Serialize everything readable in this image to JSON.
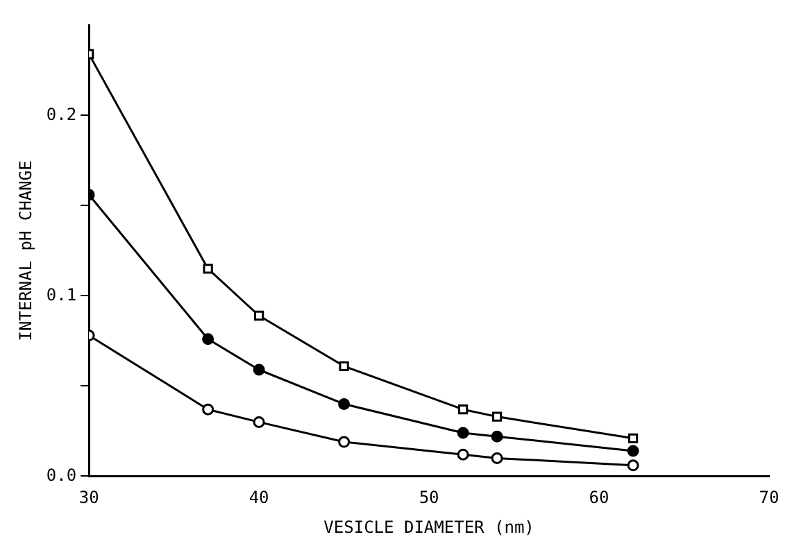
{
  "chart_data": {
    "type": "line",
    "xlabel": "VESICLE DIAMETER (nm)",
    "ylabel": "INTERNAL pH CHANGE",
    "x": [
      30,
      37,
      40,
      45,
      52,
      54,
      62
    ],
    "series": [
      {
        "color": "#000000",
        "marker": "square",
        "values": [
          0.234,
          0.115,
          0.089,
          0.061,
          0.037,
          0.033,
          0.021
        ]
      },
      {
        "color": "#000000",
        "marker": "circle",
        "values": [
          0.156,
          0.076,
          0.059,
          0.04,
          0.024,
          0.022,
          0.014
        ]
      },
      {
        "color": "#000000",
        "marker": "circle",
        "values": [
          0.078,
          0.037,
          0.03,
          0.019,
          0.012,
          0.01,
          0.006
        ]
      }
    ],
    "xlim": [
      30,
      70
    ],
    "xticks": [
      30,
      40,
      50,
      60,
      70
    ],
    "ylim": [
      0,
      0.25
    ],
    "yticks": [
      {
        "value": 0,
        "label": "0.0"
      },
      {
        "value": 0.05,
        "label": null
      },
      0.1,
      {
        "value": 0.15,
        "label": null
      },
      0.2
    ],
    "grid": false,
    "legend": false,
    "line_style": "solid"
  }
}
